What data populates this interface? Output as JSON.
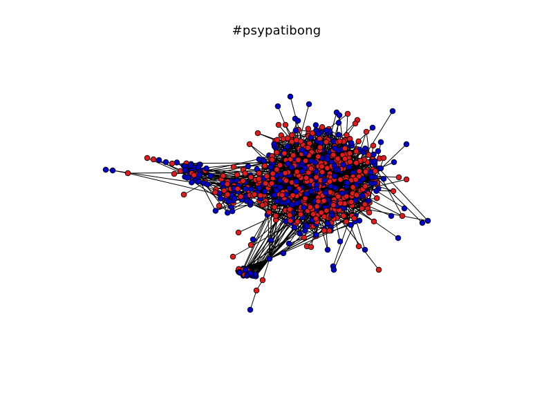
{
  "figure": {
    "title": "#psypatibong"
  },
  "colors": {
    "background": "#ffffff",
    "edge": "#000000",
    "node_outline": "#000000",
    "node_group_a": "#e31a1c",
    "node_group_b": "#0000cc"
  },
  "graph": {
    "type": "network",
    "layout": "force-directed",
    "node_groups": [
      "red",
      "blue"
    ]
  }
}
